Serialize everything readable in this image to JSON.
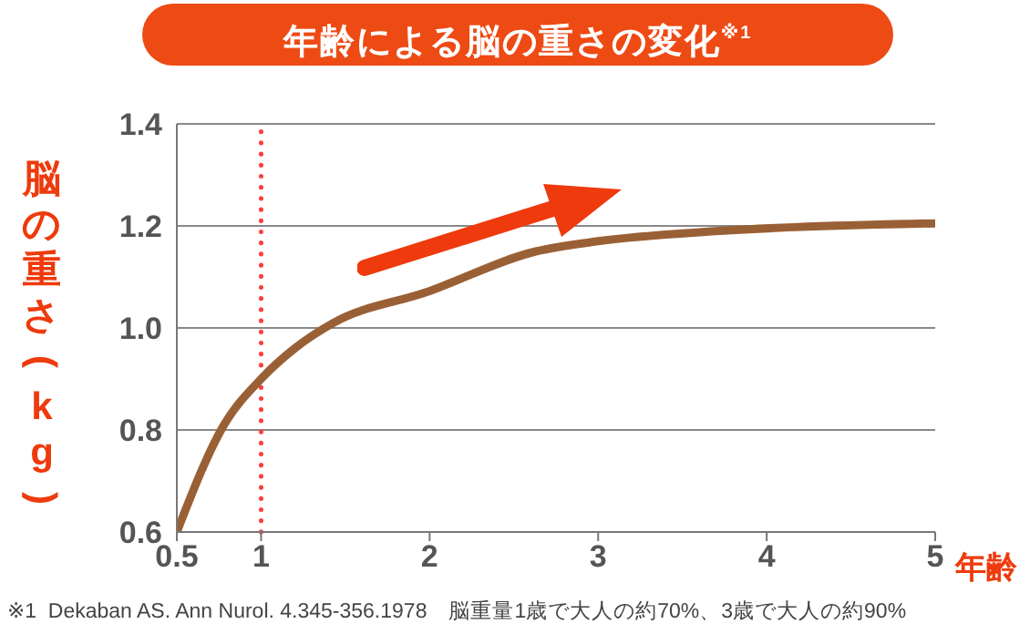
{
  "chart_data": {
    "type": "line",
    "title": "年齢による脳の重さの変化$^{※1}$",
    "ylabel": "脳の重さ(kg)",
    "xlabel": "年齢",
    "x": [
      0.5,
      0.78,
      1,
      1.2,
      1.43,
      1.98,
      2.63,
      3,
      3.72,
      5
    ],
    "series": [
      {
        "color": "#9a6035",
        "values": [
          0.6,
          0.81,
          0.9,
          0.96,
          1.01,
          1.07,
          1.15,
          1.17,
          1.19,
          1.205
        ]
      }
    ],
    "xlim": [
      0.5,
      5
    ],
    "xticks": [
      0.5,
      1,
      2,
      3,
      4,
      5
    ],
    "ylim": [
      0.6,
      1.4
    ],
    "yticks": [
      0.6,
      0.8,
      {
        "value": 1,
        "label": "1.0"
      },
      1.2,
      1.4
    ],
    "grid": "y",
    "marker": "none",
    "line_style": "solid",
    "ref_lines": [
      {
        "axis": "x",
        "value": 1,
        "color": "#ff3b3b",
        "line_style": "dotted"
      }
    ],
    "annotations": [
      "※1  Dekaban AS. Ann Nurol. 4.345-356.1978　脳重量1歳で大人の約70%、3歳で大人の約90%"
    ]
  }
}
